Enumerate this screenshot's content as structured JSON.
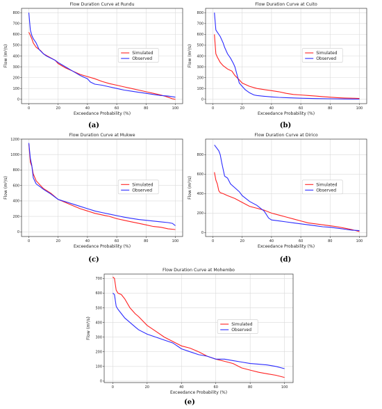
{
  "colors": {
    "simulated": "#ff2020",
    "observed": "#2a2aff",
    "grid": "#d9d9d9",
    "frame": "#333333"
  },
  "chart_data": [
    {
      "panel_label": "(a)",
      "type": "line",
      "title": "Flow Duration Curve at Rundu",
      "xlabel": "Exceedance Probability (%)",
      "ylabel": "Flow (m³/s)",
      "xlim": [
        -5,
        105
      ],
      "ylim": [
        -40,
        840
      ],
      "xticks": [
        0,
        20,
        40,
        60,
        80,
        100
      ],
      "yticks": [
        0,
        100,
        200,
        300,
        400,
        500,
        600,
        700,
        800
      ],
      "grid": true,
      "legend": "center-right",
      "series": [
        {
          "name": "Simulated",
          "x": [
            0,
            1,
            2,
            3,
            5,
            8,
            10,
            14,
            18,
            20,
            25,
            30,
            35,
            40,
            45,
            50,
            55,
            60,
            65,
            70,
            75,
            80,
            85,
            90,
            95,
            98,
            100
          ],
          "y": [
            620,
            590,
            560,
            520,
            480,
            450,
            420,
            390,
            360,
            330,
            290,
            260,
            230,
            210,
            190,
            165,
            145,
            130,
            115,
            100,
            85,
            70,
            55,
            40,
            20,
            5,
            0
          ]
        },
        {
          "name": "Observed",
          "x": [
            0,
            0.5,
            1,
            2,
            3,
            4,
            5,
            7,
            10,
            12,
            15,
            18,
            20,
            25,
            30,
            35,
            40,
            42,
            45,
            50,
            55,
            60,
            65,
            70,
            75,
            80,
            85,
            90,
            95,
            100
          ],
          "y": [
            800,
            720,
            640,
            590,
            560,
            540,
            520,
            460,
            420,
            400,
            380,
            360,
            340,
            300,
            260,
            220,
            190,
            160,
            140,
            130,
            115,
            100,
            85,
            75,
            65,
            55,
            45,
            35,
            30,
            20
          ]
        }
      ]
    },
    {
      "panel_label": "(b)",
      "type": "line",
      "title": "Flow Duration Curve at Cuito",
      "xlabel": "Exceedance Probability (%)",
      "ylabel": "Flow (m³/s)",
      "xlim": [
        -5,
        105
      ],
      "ylim": [
        -40,
        840
      ],
      "xticks": [
        0,
        20,
        40,
        60,
        80,
        100
      ],
      "yticks": [
        0,
        100,
        200,
        300,
        400,
        500,
        600,
        700,
        800
      ],
      "grid": true,
      "legend": "center-right",
      "series": [
        {
          "name": "Simulated",
          "x": [
            1,
            2,
            3,
            5,
            7,
            10,
            13,
            15,
            18,
            20,
            25,
            30,
            35,
            40,
            45,
            50,
            55,
            60,
            65,
            70,
            75,
            80,
            85,
            90,
            95,
            100
          ],
          "y": [
            600,
            420,
            390,
            340,
            310,
            280,
            260,
            220,
            180,
            150,
            120,
            100,
            90,
            80,
            70,
            55,
            45,
            40,
            35,
            30,
            25,
            20,
            15,
            12,
            10,
            8
          ]
        },
        {
          "name": "Observed",
          "x": [
            1,
            2,
            3,
            5,
            7,
            8,
            10,
            12,
            14,
            15,
            17,
            18,
            20,
            22,
            25,
            28,
            30,
            35,
            40,
            45,
            50,
            60,
            70,
            80,
            90,
            100
          ],
          "y": [
            800,
            640,
            620,
            580,
            520,
            480,
            420,
            380,
            330,
            300,
            200,
            150,
            120,
            90,
            60,
            40,
            35,
            28,
            22,
            18,
            15,
            10,
            7,
            5,
            3,
            2
          ]
        }
      ]
    },
    {
      "panel_label": "(c)",
      "type": "line",
      "title": "Flow Duration Curve at Mukwe",
      "xlabel": "Exceedance Probability (%)",
      "ylabel": "Flow (m³/s)",
      "xlim": [
        -5,
        105
      ],
      "ylim": [
        -60,
        1200
      ],
      "xticks": [
        0,
        20,
        40,
        60,
        80,
        100
      ],
      "yticks": [
        0,
        200,
        400,
        600,
        800,
        1000,
        1200
      ],
      "grid": true,
      "legend": "center-right",
      "series": [
        {
          "name": "Simulated",
          "x": [
            0,
            1,
            2,
            3,
            5,
            8,
            10,
            15,
            20,
            25,
            30,
            35,
            40,
            45,
            50,
            55,
            60,
            65,
            70,
            75,
            80,
            85,
            90,
            95,
            100
          ],
          "y": [
            1140,
            900,
            850,
            750,
            660,
            600,
            560,
            500,
            420,
            380,
            340,
            300,
            270,
            240,
            220,
            200,
            170,
            150,
            130,
            110,
            90,
            70,
            60,
            40,
            30
          ]
        },
        {
          "name": "Observed",
          "x": [
            0,
            1,
            2,
            3,
            5,
            8,
            10,
            15,
            20,
            25,
            30,
            35,
            40,
            45,
            50,
            55,
            60,
            65,
            70,
            75,
            80,
            85,
            90,
            95,
            98,
            100
          ],
          "y": [
            1150,
            950,
            860,
            700,
            620,
            580,
            550,
            490,
            420,
            390,
            360,
            330,
            300,
            270,
            250,
            230,
            210,
            190,
            175,
            160,
            150,
            140,
            130,
            120,
            110,
            80
          ]
        }
      ]
    },
    {
      "panel_label": "(d)",
      "type": "line",
      "title": "Flow Duration Curve at Dirico",
      "xlabel": "Exceedance Probability (%)",
      "ylabel": "Flow (m³/s)",
      "xlim": [
        -5,
        105
      ],
      "ylim": [
        -40,
        960
      ],
      "xticks": [
        0,
        20,
        40,
        60,
        80,
        100
      ],
      "yticks": [
        0,
        200,
        400,
        600,
        800
      ],
      "grid": true,
      "legend": "center-right",
      "series": [
        {
          "name": "Simulated",
          "x": [
            1,
            2,
            3,
            4,
            5,
            7,
            10,
            15,
            20,
            25,
            30,
            35,
            40,
            45,
            50,
            55,
            60,
            65,
            70,
            75,
            80,
            85,
            90,
            95,
            100
          ],
          "y": [
            620,
            540,
            500,
            430,
            410,
            400,
            380,
            350,
            310,
            270,
            250,
            230,
            200,
            180,
            160,
            140,
            120,
            100,
            90,
            80,
            70,
            60,
            45,
            30,
            10
          ]
        },
        {
          "name": "Observed",
          "x": [
            1,
            2,
            4,
            5,
            6,
            8,
            10,
            12,
            15,
            18,
            20,
            25,
            30,
            35,
            38,
            40,
            45,
            50,
            55,
            60,
            65,
            70,
            75,
            80,
            85,
            90,
            95,
            100
          ],
          "y": [
            900,
            880,
            840,
            800,
            720,
            580,
            560,
            500,
            460,
            420,
            380,
            320,
            280,
            220,
            150,
            130,
            120,
            110,
            100,
            90,
            80,
            70,
            60,
            55,
            45,
            35,
            25,
            20
          ]
        }
      ]
    },
    {
      "panel_label": "(e)",
      "type": "line",
      "title": "Flow Duration Curve at Mohembo",
      "xlabel": "Exceedance Probability (%)",
      "ylabel": "Flow (m³/s)",
      "xlim": [
        -5,
        105
      ],
      "ylim": [
        -10,
        730
      ],
      "xticks": [
        0,
        20,
        40,
        60,
        80,
        100
      ],
      "yticks": [
        0,
        100,
        200,
        300,
        400,
        500,
        600,
        700
      ],
      "grid": true,
      "legend": "center-right",
      "series": [
        {
          "name": "Simulated",
          "x": [
            0,
            1,
            2,
            3,
            5,
            7,
            10,
            13,
            15,
            20,
            25,
            30,
            35,
            40,
            45,
            50,
            55,
            60,
            65,
            70,
            75,
            80,
            85,
            90,
            95,
            100
          ],
          "y": [
            710,
            700,
            620,
            600,
            590,
            560,
            500,
            460,
            440,
            380,
            340,
            300,
            270,
            240,
            225,
            200,
            170,
            150,
            135,
            120,
            90,
            75,
            60,
            50,
            40,
            25
          ]
        },
        {
          "name": "Observed",
          "x": [
            0,
            1,
            2,
            3,
            5,
            7,
            10,
            13,
            15,
            20,
            25,
            30,
            35,
            40,
            45,
            50,
            55,
            60,
            65,
            70,
            75,
            80,
            85,
            90,
            95,
            100
          ],
          "y": [
            600,
            590,
            510,
            490,
            460,
            430,
            400,
            370,
            350,
            320,
            300,
            280,
            260,
            220,
            200,
            180,
            170,
            150,
            150,
            140,
            130,
            120,
            115,
            110,
            100,
            85
          ]
        }
      ]
    }
  ]
}
